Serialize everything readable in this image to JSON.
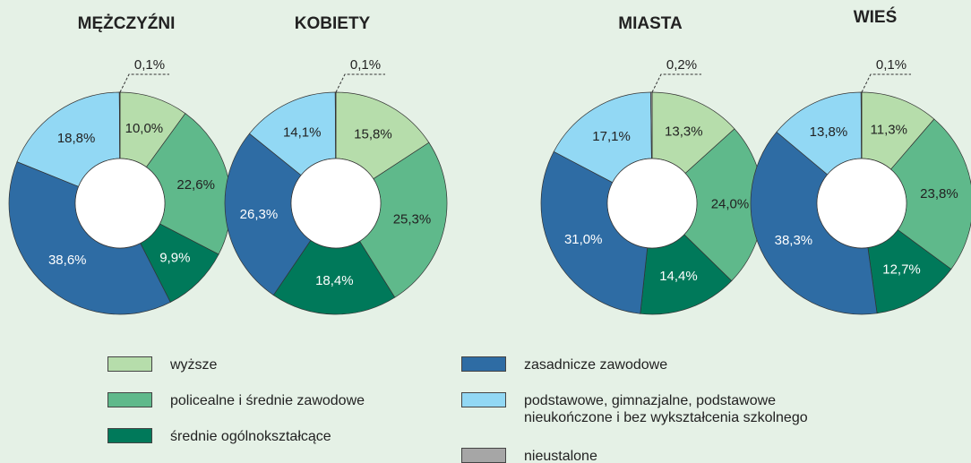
{
  "chart_data": [
    {
      "type": "pie",
      "title": "MĘŻCZYŹNI",
      "categories": [
        "wyższe",
        "policealne i średnie zawodowe",
        "średnie ogólnokształcące",
        "zasadnicze zawodowe",
        "podstawowe, gimnazjalne, podstawowe nieukończone i bez wykształcenia szkolnego",
        "nieustalone"
      ],
      "colors": [
        "#b6ddab",
        "#5fb98b",
        "#00795a",
        "#2e6ca4",
        "#92d8f4",
        "#a6a6a6"
      ],
      "values": [
        10.0,
        22.6,
        9.9,
        38.6,
        18.8,
        0.1
      ],
      "value_labels": [
        "10,0%",
        "22,6%",
        "9,9%",
        "38,6%",
        "18,8%",
        "0,1%"
      ]
    },
    {
      "type": "pie",
      "title": "KOBIETY",
      "categories": [
        "wyższe",
        "policealne i średnie zawodowe",
        "średnie ogólnokształcące",
        "zasadnicze zawodowe",
        "podstawowe, gimnazjalne, podstawowe nieukończone i bez wykształcenia szkolnego",
        "nieustalone"
      ],
      "colors": [
        "#b6ddab",
        "#5fb98b",
        "#00795a",
        "#2e6ca4",
        "#92d8f4",
        "#a6a6a6"
      ],
      "values": [
        15.8,
        25.3,
        18.4,
        26.3,
        14.1,
        0.1
      ],
      "value_labels": [
        "15,8%",
        "25,3%",
        "18,4%",
        "26,3%",
        "14,1%",
        "0,1%"
      ]
    },
    {
      "type": "pie",
      "title": "MIASTA",
      "categories": [
        "wyższe",
        "policealne i średnie zawodowe",
        "średnie ogólnokształcące",
        "zasadnicze zawodowe",
        "podstawowe, gimnazjalne, podstawowe nieukończone i bez wykształcenia szkolnego",
        "nieustalone"
      ],
      "colors": [
        "#b6ddab",
        "#5fb98b",
        "#00795a",
        "#2e6ca4",
        "#92d8f4",
        "#a6a6a6"
      ],
      "values": [
        13.3,
        24.0,
        14.4,
        31.0,
        17.1,
        0.2
      ],
      "value_labels": [
        "13,3%",
        "24,0%",
        "14,4%",
        "31,0%",
        "17,1%",
        "0,2%"
      ]
    },
    {
      "type": "pie",
      "title": "WIEŚ",
      "categories": [
        "wyższe",
        "policealne i średnie zawodowe",
        "średnie ogólnokształcące",
        "zasadnicze zawodowe",
        "podstawowe, gimnazjalne, podstawowe nieukończone i bez wykształcenia szkolnego",
        "nieustalone"
      ],
      "colors": [
        "#b6ddab",
        "#5fb98b",
        "#00795a",
        "#2e6ca4",
        "#92d8f4",
        "#a6a6a6"
      ],
      "values": [
        11.3,
        23.8,
        12.7,
        38.3,
        13.8,
        0.1
      ],
      "value_labels": [
        "11,3%",
        "23,8%",
        "12,7%",
        "38,3%",
        "13,8%",
        "0,1%"
      ]
    }
  ]
}
